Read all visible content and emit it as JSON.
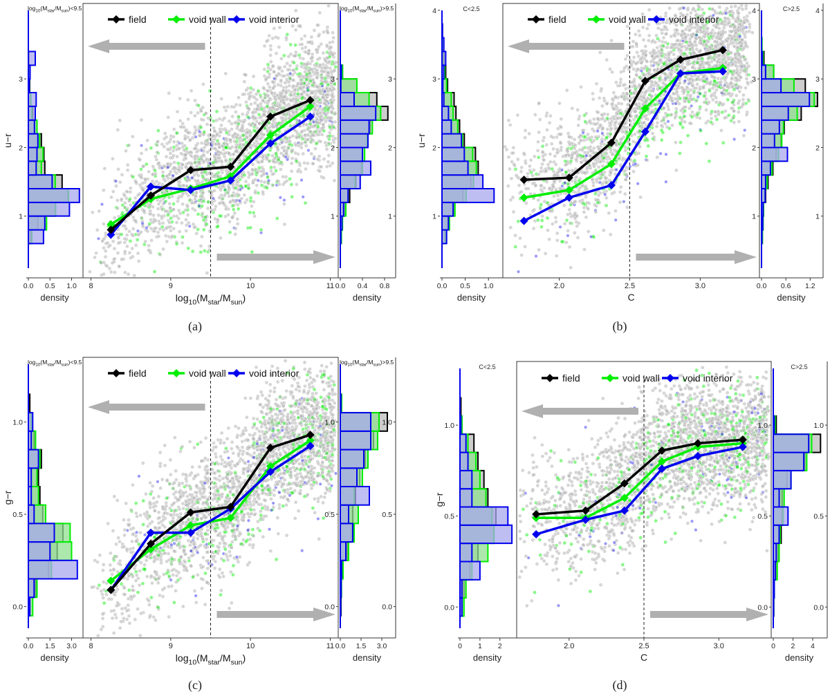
{
  "colors": {
    "field": "#000000",
    "void_wall": "#00ee00",
    "void_interior": "#0000ee",
    "scatter": "#b4b4b4",
    "arrow": "#b0b0b0",
    "field_fill": "#c8c8c8",
    "wall_fill": "#90e090",
    "interior_fill": "#a8a8ee"
  },
  "chart_data": [
    {
      "type": "line",
      "panel": "(a)",
      "xlabel": "log10(Mstar/Msun)",
      "ylabel": "u−r",
      "xlim": [
        7.9,
        11.1
      ],
      "ylim": [
        0.1,
        4.1
      ],
      "xticks": [
        "8",
        "9",
        "10",
        "11"
      ],
      "yticks": [
        "1",
        "2",
        "3"
      ],
      "cut": 9.5,
      "legend": [
        "field",
        "void wall",
        "void interior"
      ],
      "series": [
        {
          "name": "field",
          "x": [
            8.25,
            8.75,
            9.25,
            9.75,
            10.25,
            10.75
          ],
          "y": [
            0.8,
            1.3,
            1.67,
            1.72,
            2.45,
            2.69
          ]
        },
        {
          "name": "void wall",
          "x": [
            8.25,
            8.75,
            9.25,
            9.75,
            10.25,
            10.75
          ],
          "y": [
            0.88,
            1.25,
            1.4,
            1.58,
            2.18,
            2.6
          ]
        },
        {
          "name": "void interior",
          "x": [
            8.25,
            8.75,
            9.25,
            9.75,
            10.25,
            10.75
          ],
          "y": [
            0.73,
            1.43,
            1.38,
            1.52,
            2.06,
            2.45
          ]
        }
      ],
      "left_hist": {
        "title": "log10(Mstar/Msun)<9.5",
        "xlabel": "density",
        "xticks": [
          "0.0",
          "0.5",
          "1.0"
        ],
        "xlim": [
          0,
          1.2
        ],
        "bins": [
          0.7,
          0.9,
          1.1,
          1.3,
          1.5,
          1.7,
          1.9,
          2.1,
          2.3,
          2.5,
          2.7,
          2.9,
          3.1,
          3.3,
          3.5,
          3.7
        ],
        "field": [
          0.05,
          0.22,
          0.62,
          0.92,
          0.78,
          0.38,
          0.36,
          0.3,
          0.14,
          0.1,
          0.05,
          0.03,
          0.01,
          0.01,
          0,
          0
        ],
        "wall": [
          0.08,
          0.42,
          0.63,
          0.93,
          0.62,
          0.3,
          0.34,
          0.26,
          0.2,
          0.08,
          0.06,
          0.02,
          0.02,
          0,
          0,
          0
        ],
        "interior": [
          0.35,
          0.38,
          0.95,
          1.18,
          0.55,
          0.18,
          0.2,
          0.22,
          0.14,
          0.16,
          0.18,
          0.02,
          0.04,
          0.16,
          0,
          0
        ]
      },
      "right_hist": {
        "title": "log10(Mstar/Msun)>9.5",
        "xlabel": "density",
        "xticks": [
          "0.0",
          "0.4",
          "0.8"
        ],
        "xlim": [
          0,
          0.95
        ],
        "bins": [
          0.7,
          0.9,
          1.1,
          1.3,
          1.5,
          1.7,
          1.9,
          2.1,
          2.3,
          2.5,
          2.7,
          2.9,
          3.1,
          3.3,
          3.5,
          3.7
        ],
        "field": [
          0.01,
          0.03,
          0.07,
          0.17,
          0.28,
          0.38,
          0.4,
          0.48,
          0.54,
          0.86,
          0.66,
          0.3,
          0.04,
          0,
          0,
          0
        ],
        "wall": [
          0.02,
          0.04,
          0.1,
          0.14,
          0.27,
          0.4,
          0.44,
          0.48,
          0.58,
          0.73,
          0.52,
          0.3,
          0.04,
          0,
          0,
          0
        ],
        "interior": [
          0.01,
          0.03,
          0.06,
          0.14,
          0.36,
          0.55,
          0.4,
          0.5,
          0.52,
          0.64,
          0.25,
          0.01,
          0.02,
          0,
          0,
          0
        ]
      }
    },
    {
      "type": "line",
      "panel": "(b)",
      "xlabel": "C",
      "ylabel": "u−r",
      "xlim": [
        1.6,
        3.42
      ],
      "ylim": [
        0.1,
        4.1
      ],
      "xticks": [
        "2.0",
        "2.5",
        "3.0"
      ],
      "yticks": [
        "1",
        "2",
        "3",
        "4"
      ],
      "cut": 2.5,
      "legend": [
        "field",
        "void wall",
        "void interior"
      ],
      "series": [
        {
          "name": "field",
          "x": [
            1.75,
            2.07,
            2.37,
            2.61,
            2.86,
            3.16
          ],
          "y": [
            1.53,
            1.56,
            2.07,
            2.97,
            3.28,
            3.42
          ]
        },
        {
          "name": "void wall",
          "x": [
            1.75,
            2.07,
            2.37,
            2.61,
            2.86,
            3.16
          ],
          "y": [
            1.27,
            1.38,
            1.76,
            2.57,
            3.08,
            3.16
          ]
        },
        {
          "name": "void interior",
          "x": [
            1.75,
            2.07,
            2.37,
            2.61,
            2.86,
            3.16
          ],
          "y": [
            0.93,
            1.27,
            1.45,
            2.23,
            3.08,
            3.11
          ]
        }
      ],
      "left_hist": {
        "title": "C<2.5",
        "xlabel": "density",
        "xticks": [
          "0.0",
          "0.5",
          "1.0"
        ],
        "xlim": [
          0,
          1.25
        ],
        "bins": [
          0.7,
          0.9,
          1.1,
          1.3,
          1.5,
          1.7,
          1.9,
          2.1,
          2.3,
          2.5,
          2.7,
          2.9,
          3.1,
          3.3,
          3.5,
          3.7
        ],
        "field": [
          0.06,
          0.12,
          0.25,
          0.45,
          0.62,
          0.78,
          0.72,
          0.48,
          0.38,
          0.3,
          0.26,
          0.12,
          0.08,
          0.04,
          0.02,
          0.01
        ],
        "wall": [
          0.08,
          0.16,
          0.28,
          0.52,
          0.68,
          0.74,
          0.66,
          0.44,
          0.34,
          0.24,
          0.2,
          0.1,
          0.06,
          0.02,
          0.01,
          0
        ],
        "interior": [
          0.1,
          0.14,
          0.24,
          1.12,
          0.88,
          0.56,
          0.48,
          0.42,
          0.2,
          0.14,
          0.04,
          0.02,
          0.04,
          0.08,
          0.04,
          0.01
        ]
      },
      "right_hist": {
        "title": "C>2.5",
        "xlabel": "density",
        "xticks": [
          "0.0",
          "0.6",
          "1.2"
        ],
        "xlim": [
          0,
          1.45
        ],
        "bins": [
          0.7,
          0.9,
          1.1,
          1.3,
          1.5,
          1.7,
          1.9,
          2.1,
          2.3,
          2.5,
          2.7,
          2.9,
          3.1,
          3.3,
          3.5,
          3.7
        ],
        "field": [
          0.02,
          0.03,
          0.05,
          0.1,
          0.16,
          0.28,
          0.36,
          0.48,
          0.56,
          0.98,
          1.38,
          1.08,
          0.3,
          0.06,
          0.01,
          0
        ],
        "wall": [
          0.02,
          0.04,
          0.05,
          0.08,
          0.14,
          0.26,
          0.42,
          0.5,
          0.54,
          0.88,
          1.3,
          0.8,
          0.3,
          0.04,
          0.01,
          0
        ],
        "interior": [
          0.01,
          0.03,
          0.04,
          0.09,
          0.1,
          0.22,
          0.64,
          0.32,
          0.44,
          0.66,
          1.18,
          0.48,
          0.1,
          0.02,
          0,
          0
        ]
      }
    },
    {
      "type": "line",
      "panel": "(c)",
      "xlabel": "log10(Mstar/Msun)",
      "ylabel": "g−r",
      "xlim": [
        7.9,
        11.1
      ],
      "ylim": [
        -0.17,
        1.35
      ],
      "xticks": [
        "8",
        "9",
        "10",
        "11"
      ],
      "yticks": [
        "0.0",
        "0.5",
        "1.0"
      ],
      "cut": 9.5,
      "legend": [
        "field",
        "void wall",
        "void interior"
      ],
      "series": [
        {
          "name": "field",
          "x": [
            8.25,
            8.75,
            9.25,
            9.75,
            10.25,
            10.75
          ],
          "y": [
            0.09,
            0.34,
            0.51,
            0.54,
            0.86,
            0.93
          ]
        },
        {
          "name": "void wall",
          "x": [
            8.25,
            8.75,
            9.25,
            9.75,
            10.25,
            10.75
          ],
          "y": [
            0.14,
            0.31,
            0.44,
            0.48,
            0.76,
            0.9
          ]
        },
        {
          "name": "void interior",
          "x": [
            8.25,
            8.75,
            9.25,
            9.75,
            10.25,
            10.75
          ],
          "y": [
            0.09,
            0.4,
            0.4,
            0.53,
            0.73,
            0.87
          ]
        }
      ],
      "left_hist": {
        "title": "log10(Mstar/Msun)<9.5",
        "xlabel": "density",
        "xticks": [
          "0.0",
          "1.5",
          "3.0"
        ],
        "xlim": [
          0,
          3.6
        ],
        "bins": [
          0.0,
          0.1,
          0.2,
          0.3,
          0.4,
          0.5,
          0.6,
          0.7,
          0.8,
          0.9,
          1.0,
          1.1
        ],
        "field": [
          0.1,
          0.5,
          1.4,
          2.0,
          2.4,
          1.0,
          0.8,
          0.7,
          0.9,
          0.4,
          0.2,
          0.1
        ],
        "wall": [
          0.3,
          0.6,
          1.6,
          3.0,
          2.9,
          1.2,
          0.7,
          0.6,
          0.8,
          0.5,
          0.2,
          0
        ],
        "interior": [
          0.1,
          0.4,
          3.4,
          1.5,
          1.8,
          0.4,
          0.2,
          0.2,
          0.7,
          0.2,
          0.3,
          0
        ]
      },
      "right_hist": {
        "title": "log10(Mstar/Msun)>9.5",
        "xlabel": "density",
        "xticks": [
          "0.0",
          "1.5",
          "3.0"
        ],
        "xlim": [
          0,
          3.8
        ],
        "bins": [
          0.0,
          0.1,
          0.2,
          0.3,
          0.4,
          0.5,
          0.6,
          0.7,
          0.8,
          0.9,
          1.0,
          1.1
        ],
        "field": [
          0.05,
          0.08,
          0.12,
          0.5,
          0.8,
          0.9,
          1.1,
          1.4,
          1.8,
          2.4,
          3.4,
          0.1
        ],
        "wall": [
          0.03,
          0.08,
          0.2,
          0.6,
          1.0,
          1.3,
          1.0,
          1.6,
          2.0,
          2.7,
          2.8,
          0.1
        ],
        "interior": [
          0.02,
          0.06,
          0.1,
          0.4,
          0.9,
          0.6,
          2.1,
          1.2,
          1.7,
          2.2,
          2.2,
          0.05
        ]
      }
    },
    {
      "type": "line",
      "panel": "(d)",
      "xlabel": "C",
      "ylabel": "g−r",
      "xlim": [
        1.65,
        3.35
      ],
      "ylim": [
        -0.17,
        1.35
      ],
      "xticks": [
        "2.0",
        "2.5",
        "3.0"
      ],
      "yticks": [
        "0.0",
        "0.5",
        "1.0"
      ],
      "cut": 2.5,
      "legend": [
        "field",
        "void wall",
        "void interior"
      ],
      "series": [
        {
          "name": "field",
          "x": [
            1.78,
            2.11,
            2.37,
            2.62,
            2.86,
            3.16
          ],
          "y": [
            0.51,
            0.53,
            0.68,
            0.86,
            0.9,
            0.92
          ]
        },
        {
          "name": "void wall",
          "x": [
            1.78,
            2.11,
            2.37,
            2.62,
            2.86,
            3.16
          ],
          "y": [
            0.49,
            0.49,
            0.6,
            0.8,
            0.88,
            0.9
          ]
        },
        {
          "name": "void interior",
          "x": [
            1.78,
            2.11,
            2.37,
            2.62,
            2.86,
            3.16
          ],
          "y": [
            0.4,
            0.48,
            0.53,
            0.76,
            0.83,
            0.88
          ]
        }
      ],
      "left_hist": {
        "title": "C<2.5",
        "xlabel": "density",
        "xticks": [
          "0",
          "1",
          "2"
        ],
        "xlim": [
          0,
          2.7
        ],
        "bins": [
          0.0,
          0.1,
          0.2,
          0.3,
          0.4,
          0.5,
          0.6,
          0.7,
          0.8,
          0.9,
          1.0,
          1.1
        ],
        "field": [
          0.1,
          0.2,
          0.5,
          0.9,
          1.7,
          1.8,
          1.4,
          1.2,
          0.9,
          0.7,
          0.1,
          0.05
        ],
        "wall": [
          0.2,
          0.3,
          0.6,
          1.4,
          1.7,
          1.6,
          1.3,
          1.0,
          0.8,
          0.4,
          0.1,
          0
        ],
        "interior": [
          0.1,
          0.1,
          1.0,
          0.6,
          2.6,
          2.4,
          0.6,
          0.6,
          0.4,
          0.3,
          0.05,
          0
        ]
      },
      "right_hist": {
        "title": "C>2.5",
        "xlabel": "density",
        "xticks": [
          "0",
          "2",
          "4"
        ],
        "xlim": [
          0,
          5.2
        ],
        "bins": [
          0.0,
          0.1,
          0.2,
          0.3,
          0.4,
          0.5,
          0.6,
          0.7,
          0.8,
          0.9,
          1.0,
          1.1
        ],
        "field": [
          0.05,
          0.1,
          0.3,
          0.5,
          0.8,
          0.9,
          0.9,
          1.4,
          3.2,
          4.8,
          0.3,
          0
        ],
        "wall": [
          0.05,
          0.1,
          0.4,
          0.6,
          0.7,
          1.0,
          1.1,
          1.8,
          3.4,
          3.9,
          0.2,
          0
        ],
        "interior": [
          0.03,
          0.1,
          0.2,
          0.3,
          0.6,
          1.5,
          0.6,
          1.8,
          3.1,
          3.6,
          0.1,
          0
        ]
      }
    }
  ]
}
